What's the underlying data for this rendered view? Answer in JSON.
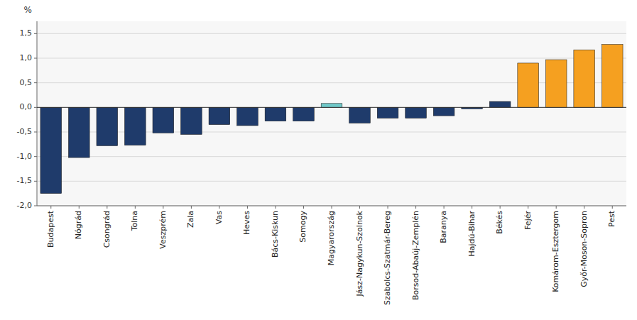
{
  "chart_data": {
    "type": "bar",
    "categories": [
      "Budapest",
      "Nógrád",
      "Csongrád",
      "Tolna",
      "Veszprém",
      "Zala",
      "Vas",
      "Heves",
      "Bács-Kiskun",
      "Somogy",
      "Magyarország",
      "Jász-Nagykun-Szolnok",
      "Szabolcs-Szatmár-Bereg",
      "Borsod-Abaúj-Zemplén",
      "Baranya",
      "Hajdú-Bihar",
      "Békés",
      "Fejér",
      "Komárom-Esztergom",
      "Győr-Moson-Sopron",
      "Pest"
    ],
    "values": [
      -1.75,
      -1.02,
      -0.78,
      -0.77,
      -0.52,
      -0.55,
      -0.35,
      -0.37,
      -0.28,
      -0.28,
      0.08,
      -0.32,
      -0.22,
      -0.22,
      -0.17,
      -0.03,
      0.12,
      0.9,
      0.97,
      1.17,
      1.28
    ],
    "colors": [
      "#1F3B6B",
      "#1F3B6B",
      "#1F3B6B",
      "#1F3B6B",
      "#1F3B6B",
      "#1F3B6B",
      "#1F3B6B",
      "#1F3B6B",
      "#1F3B6B",
      "#1F3B6B",
      "#70C8C8",
      "#1F3B6B",
      "#1F3B6B",
      "#1F3B6B",
      "#1F3B6B",
      "#1F3B6B",
      "#1F3B6B",
      "#F5A020",
      "#F5A020",
      "#F5A020",
      "#F5A020"
    ],
    "ylabel": "%",
    "ylim": [
      -2.0,
      1.75
    ],
    "yticks": [
      {
        "value": -2.0,
        "label": "-2,0"
      },
      {
        "value": -1.5,
        "label": "-1,5"
      },
      {
        "value": -1.0,
        "label": "-1,0"
      },
      {
        "value": -0.5,
        "label": "-0,5"
      },
      {
        "value": 0.0,
        "label": "0,0"
      },
      {
        "value": 0.5,
        "label": "0,5"
      },
      {
        "value": 1.0,
        "label": "1,0"
      },
      {
        "value": 1.5,
        "label": "1,5"
      }
    ],
    "grid": true
  }
}
